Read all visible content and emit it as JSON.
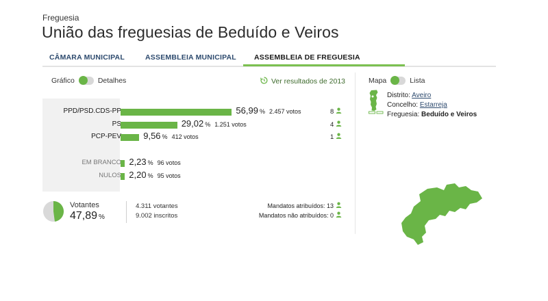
{
  "header": {
    "eyebrow": "Freguesia",
    "title": "União das freguesias de Beduído e Veiros"
  },
  "tabs": [
    {
      "label": "CÂMARA MUNICIPAL",
      "active": false
    },
    {
      "label": "ASSEMBLEIA MUNICIPAL",
      "active": false
    },
    {
      "label": "ASSEMBLEIA DE FREGUESIA",
      "active": true
    }
  ],
  "view_toggle": {
    "left": "Gráfico",
    "right": "Detalhes"
  },
  "history_link": "Ver resultados de 2013",
  "results": [
    {
      "party": "PPD/PSD.CDS-PP",
      "pct": "56,99",
      "votes": "2.457 votos",
      "seats": "8",
      "share": 56.99
    },
    {
      "party": "PS",
      "pct": "29,02",
      "votes": "1.251 votos",
      "seats": "4",
      "share": 29.02
    },
    {
      "party": "PCP-PEV",
      "pct": "9,56",
      "votes": "412 votos",
      "seats": "1",
      "share": 9.56
    }
  ],
  "other": [
    {
      "label": "EM BRANCO",
      "pct": "2,23",
      "votes": "96 votos",
      "share": 2.23
    },
    {
      "label": "NULOS",
      "pct": "2,20",
      "votes": "95 votos",
      "share": 2.2
    }
  ],
  "pct_sign": "%",
  "turnout": {
    "label": "Votantes",
    "pct": "47,89",
    "fraction": 0.4789,
    "voters": "4.311 votantes",
    "registered": "9.002 inscritos"
  },
  "mandates": {
    "assigned": "Mandatos atribuídos: 13",
    "unassigned": "Mandatos não atribuídos: 0"
  },
  "map_toggle": {
    "left": "Mapa",
    "right": "Lista"
  },
  "location": {
    "district_label": "Distrito:",
    "district": "Aveiro",
    "county_label": "Concelho:",
    "county": "Estarreja",
    "parish_label": "Freguesia:",
    "parish": "Beduído e Veiros"
  },
  "colors": {
    "accent": "#6ab547",
    "link": "#2d4a6e",
    "donut_rest": "#d9d9d9"
  }
}
